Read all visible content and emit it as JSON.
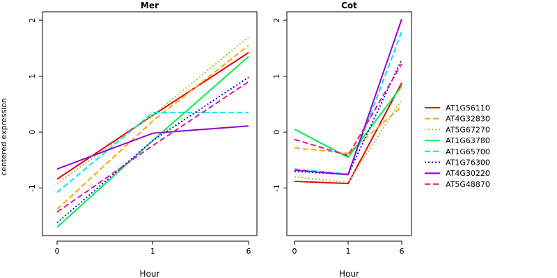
{
  "chart_data": [
    {
      "type": "line",
      "title": "Mer",
      "xlabel": "Hour",
      "ylabel": "centered expression",
      "x": [
        "0",
        "1",
        "6"
      ],
      "ylim": [
        -1.85,
        2.15
      ],
      "yticks": [
        "-1",
        "0",
        "1",
        "2"
      ],
      "yticks_values": [
        -1,
        0,
        1,
        2
      ],
      "series": [
        {
          "name": "AT1G56110",
          "color": "#E8000B",
          "dash": "solid",
          "values": [
            -0.84,
            0.3,
            1.42
          ]
        },
        {
          "name": "AT4G32830",
          "color": "#FFA500",
          "dash": "long-dash",
          "values": [
            -1.38,
            0.2,
            1.55
          ]
        },
        {
          "name": "AT5G67270",
          "color": "#9ACD32",
          "dash": "dotted",
          "values": [
            -0.92,
            0.3,
            1.7
          ]
        },
        {
          "name": "AT1G63780",
          "color": "#00EE44",
          "dash": "solid",
          "values": [
            -1.7,
            -0.15,
            1.35
          ]
        },
        {
          "name": "AT1G65700",
          "color": "#00E5EE",
          "dash": "long-dash",
          "values": [
            -1.08,
            0.35,
            0.35
          ]
        },
        {
          "name": "AT1G76300",
          "color": "#0000FF",
          "dash": "dotted",
          "values": [
            -1.62,
            -0.15,
            0.98
          ]
        },
        {
          "name": "AT4G30220",
          "color": "#9400D3",
          "dash": "solid",
          "values": [
            -0.66,
            -0.02,
            0.11
          ]
        },
        {
          "name": "AT5G48870",
          "color": "#DE1A8C",
          "dash": "long-dash",
          "values": [
            -1.43,
            -0.24,
            0.9
          ]
        }
      ]
    },
    {
      "type": "line",
      "title": "Cot",
      "xlabel": "Hour",
      "ylabel": "",
      "x": [
        "0",
        "1",
        "6"
      ],
      "ylim": [
        -1.85,
        2.15
      ],
      "yticks": [
        "-1",
        "0",
        "1",
        "2"
      ],
      "yticks_values": [
        -1,
        0,
        1,
        2
      ],
      "series": [
        {
          "name": "AT1G56110",
          "color": "#E8000B",
          "dash": "solid",
          "values": [
            -0.88,
            -0.92,
            0.88
          ]
        },
        {
          "name": "AT4G32830",
          "color": "#FFA500",
          "dash": "long-dash",
          "values": [
            -0.28,
            -0.38,
            0.46
          ]
        },
        {
          "name": "AT5G67270",
          "color": "#9ACD32",
          "dash": "dotted",
          "values": [
            -0.8,
            -0.9,
            0.58
          ]
        },
        {
          "name": "AT1G63780",
          "color": "#00EE44",
          "dash": "solid",
          "values": [
            0.05,
            -0.45,
            0.82
          ]
        },
        {
          "name": "AT1G65700",
          "color": "#00E5EE",
          "dash": "long-dash",
          "values": [
            -0.66,
            -0.75,
            1.8
          ]
        },
        {
          "name": "AT1G76300",
          "color": "#0000FF",
          "dash": "dotted",
          "values": [
            -0.7,
            -0.76,
            1.3
          ]
        },
        {
          "name": "AT4G30220",
          "color": "#9400D3",
          "dash": "solid",
          "values": [
            -0.68,
            -0.76,
            2.02
          ]
        },
        {
          "name": "AT5G48870",
          "color": "#DE1A8C",
          "dash": "long-dash",
          "values": [
            -0.13,
            -0.42,
            1.22
          ]
        }
      ]
    }
  ],
  "legend": {
    "position": "right",
    "items": [
      {
        "label": "AT1G56110",
        "color": "#E8000B",
        "dash": "solid"
      },
      {
        "label": "AT4G32830",
        "color": "#FFA500",
        "dash": "long-dash"
      },
      {
        "label": "AT5G67270",
        "color": "#9ACD32",
        "dash": "dotted"
      },
      {
        "label": "AT1G63780",
        "color": "#00EE44",
        "dash": "solid"
      },
      {
        "label": "AT1G65700",
        "color": "#00E5EE",
        "dash": "long-dash"
      },
      {
        "label": "AT1G76300",
        "color": "#0000FF",
        "dash": "dotted"
      },
      {
        "label": "AT4G30220",
        "color": "#9400D3",
        "dash": "solid"
      },
      {
        "label": "AT5G48870",
        "color": "#DE1A8C",
        "dash": "long-dash"
      }
    ]
  }
}
